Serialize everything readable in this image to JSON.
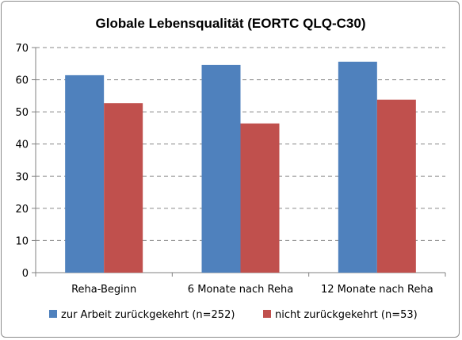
{
  "chart_data": {
    "type": "bar",
    "title": "Globale Lebensqualität (EORTC QLQ-C30)",
    "categories": [
      "Reha-Beginn",
      "6 Monate nach Reha",
      "12 Monate nach Reha"
    ],
    "series": [
      {
        "name": "zur Arbeit zurückgekehrt (n=252)",
        "values": [
          61.4,
          64.6,
          65.6
        ],
        "color": "#4f81bd"
      },
      {
        "name": "nicht zurückgekehrt (n=53)",
        "values": [
          52.7,
          46.4,
          53.8
        ],
        "color": "#c0504d"
      }
    ],
    "ylim": [
      0,
      70
    ],
    "yticks": [
      0,
      10,
      20,
      30,
      40,
      50,
      60,
      70
    ],
    "grid": true,
    "legend": "bottom"
  }
}
